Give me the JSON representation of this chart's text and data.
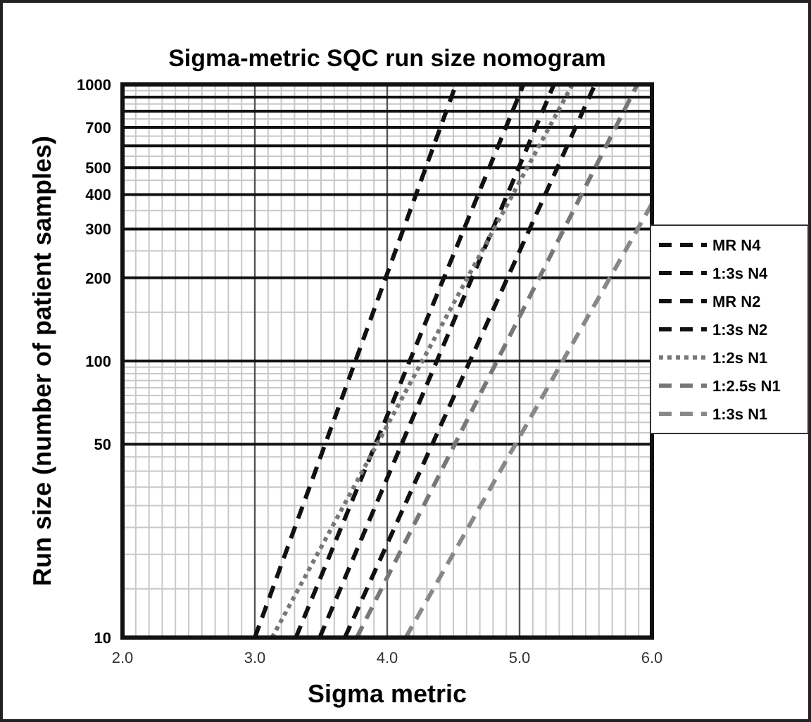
{
  "chart_data": {
    "type": "line",
    "title": "Sigma-metric SQC run size nomogram",
    "xlabel": "Sigma metric",
    "ylabel": "Run size (number of patient samples)",
    "xlim": [
      2,
      6
    ],
    "xticks": [
      {
        "value": 2,
        "label": "2.0"
      },
      {
        "value": 3,
        "label": "3.0"
      },
      {
        "value": 4,
        "label": "4.0"
      },
      {
        "value": 5,
        "label": "5.0"
      },
      {
        "value": 6,
        "label": "6.0"
      }
    ],
    "ylim": [
      10,
      1000
    ],
    "yticks": [
      10,
      50,
      100,
      200,
      300,
      400,
      500,
      {
        "value": 600,
        "label": null
      },
      700,
      {
        "value": 800,
        "label": null
      },
      {
        "value": 900,
        "label": null
      },
      1000
    ],
    "log": "y",
    "grid": true,
    "legend": "right",
    "marker": "none",
    "series": [
      {
        "name": "MR N4",
        "color": "#111111",
        "line_style": "dashed",
        "x": [
          3.0,
          4.52
        ],
        "values": [
          10,
          1000
        ]
      },
      {
        "name": "1:3s N4",
        "color": "#111111",
        "line_style": "dashed",
        "x": [
          3.31,
          5.03
        ],
        "values": [
          10,
          1000
        ]
      },
      {
        "name": "MR N2",
        "color": "#111111",
        "line_style": "dashed",
        "x": [
          3.49,
          5.26
        ],
        "values": [
          10,
          1000
        ]
      },
      {
        "name": "1:3s N2",
        "color": "#111111",
        "line_style": "dashed",
        "x": [
          3.68,
          5.57
        ],
        "values": [
          10,
          1000
        ]
      },
      {
        "name": "1:2s N1",
        "color": "#777777",
        "line_style": "dotted",
        "x": [
          3.13,
          5.4
        ],
        "values": [
          10,
          1000
        ]
      },
      {
        "name": "1:2.5s N1",
        "color": "#777777",
        "line_style": "dashed",
        "x": [
          3.77,
          5.89
        ],
        "values": [
          10,
          1000
        ]
      },
      {
        "name": "1:3s N1",
        "color": "#888888",
        "line_style": "dashed",
        "x": [
          4.14,
          6.0
        ],
        "values": [
          10,
          370
        ]
      }
    ]
  }
}
